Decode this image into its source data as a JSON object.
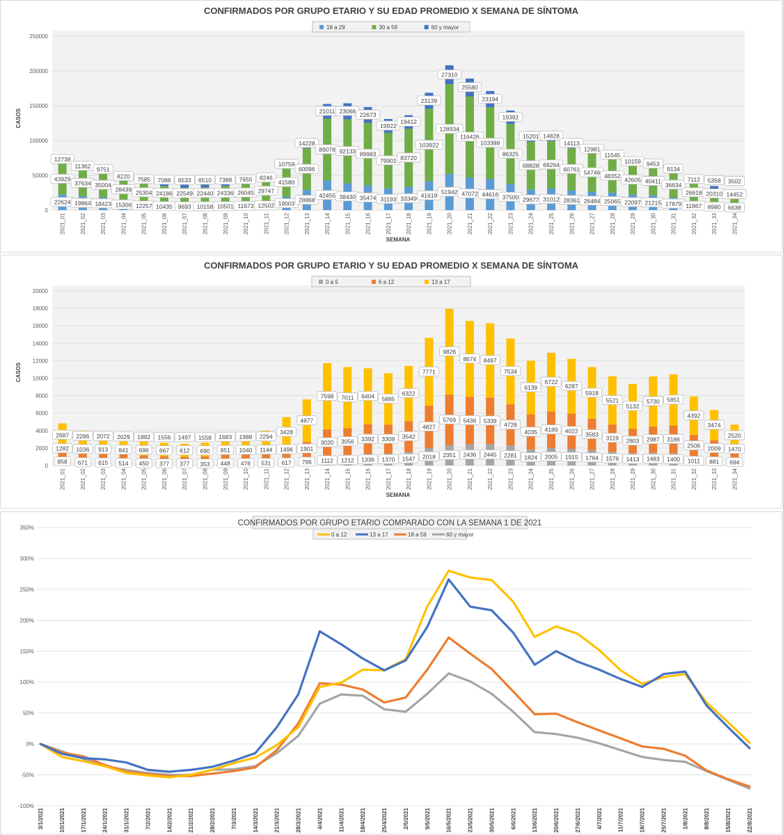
{
  "chart_data": [
    {
      "type": "bar",
      "stacked": true,
      "title": "CONFIRMADOS POR GRUPO ETARIO Y SU EDAD PROMEDIO X SEMANA DE SÍNTOMA",
      "xlabel": "SEMANA",
      "ylabel": "CASOS",
      "ylim": [
        0,
        250000
      ],
      "yticks": [
        0,
        50000,
        100000,
        150000,
        200000,
        250000
      ],
      "grid": true,
      "legend": "top-center",
      "categories": [
        "2021_01",
        "2021_02",
        "2021_03",
        "2021_04",
        "2021_05",
        "2021_06",
        "2021_07",
        "2021_08",
        "2021_09",
        "2021_10",
        "2021_11",
        "2021_12",
        "2021_13",
        "2021_14",
        "2021_15",
        "2021_16",
        "2021_17",
        "2021_18",
        "2021_19",
        "2021_20",
        "2021_21",
        "2021_22",
        "2021_23",
        "2021_24",
        "2021_25",
        "2021_26",
        "2021_27",
        "2021_28",
        "2021_29",
        "2021_30",
        "2021_31",
        "2021_32",
        "2021_33",
        "2021_34"
      ],
      "series": [
        {
          "name": "18 a 29",
          "color": "#5b9bd5",
          "values": [
            22624,
            19864,
            18423,
            15306,
            12257,
            10435,
            9693,
            10158,
            10501,
            11673,
            12502,
            19003,
            28868,
            42455,
            38430,
            35474,
            31193,
            33349,
            41619,
            51942,
            47072,
            44616,
            37500,
            29677,
            31012,
            28361,
            26484,
            25065,
            22097,
            21215,
            17879,
            11867,
            8980,
            6638
          ]
        },
        {
          "name": "30 a 59",
          "color": "#70ad47",
          "values": [
            43929,
            37634,
            35004,
            28439,
            25304,
            24186,
            22549,
            22440,
            24336,
            26045,
            29747,
            41580,
            60096,
            89078,
            92133,
            89983,
            79901,
            83720,
            103922,
            128934,
            116426,
            103388,
            86325,
            68828,
            68264,
            60761,
            54746,
            48352,
            42605,
            40411,
            36634,
            26618,
            20310,
            14452
          ]
        },
        {
          "name": "60 y mayor",
          "color": "#4472c4",
          "values": [
            12738,
            11362,
            9751,
            8220,
            7585,
            7088,
            6533,
            6510,
            7388,
            7655,
            8246,
            10759,
            14228,
            21011,
            23066,
            22673,
            19922,
            19412,
            23139,
            27310,
            25580,
            23194,
            19392,
            15201,
            14828,
            14113,
            12981,
            11545,
            10159,
            9453,
            9134,
            7112,
            5358,
            3502
          ]
        }
      ]
    },
    {
      "type": "bar",
      "stacked": true,
      "title": "CONFIRMADOS POR GRUPO ETARIO Y SU EDAD PROMEDIO X SEMANA DE SÍNTOMA",
      "xlabel": "SEMANA",
      "ylabel": "CASOS",
      "ylim": [
        0,
        20000
      ],
      "yticks": [
        0,
        2000,
        4000,
        6000,
        8000,
        10000,
        12000,
        14000,
        16000,
        18000,
        20000
      ],
      "grid": true,
      "legend": "top-center",
      "categories": [
        "2021_01",
        "2021_02",
        "2021_03",
        "2021_04",
        "2021_05",
        "2021_06",
        "2021_07",
        "2021_08",
        "2021_09",
        "2021_10",
        "2021_11",
        "2021_12",
        "2021_13",
        "2021_14",
        "2021_15",
        "2021_16",
        "2021_17",
        "2021_18",
        "2021_19",
        "2021_20",
        "2021_21",
        "2021_22",
        "2021_23",
        "2021_24",
        "2021_25",
        "2021_26",
        "2021_27",
        "2021_28",
        "2021_29",
        "2021_30",
        "2021_31",
        "2021_32",
        "2021_33",
        "2021_34"
      ],
      "series": [
        {
          "name": "0 a 5",
          "color": "#a5a5a5",
          "values": [
            858,
            671,
            615,
            514,
            450,
            377,
            377,
            353,
            448,
            476,
            531,
            617,
            796,
            1112,
            1212,
            1336,
            1370,
            1547,
            2018,
            2351,
            2436,
            2445,
            2281,
            1824,
            2005,
            1915,
            1764,
            1576,
            1413,
            1483,
            1400,
            1011,
            881,
            694
          ]
        },
        {
          "name": "6 a 12",
          "color": "#ed7d31",
          "values": [
            1282,
            1036,
            913,
            841,
            696,
            667,
            612,
            690,
            851,
            1040,
            1144,
            1496,
            1901,
            3020,
            3056,
            3392,
            3309,
            3542,
            4827,
            5769,
            5436,
            5339,
            4728,
            4035,
            4189,
            4022,
            3583,
            3119,
            2803,
            2987,
            3186,
            2506,
            2009,
            1470
          ]
        },
        {
          "name": "13 a 17",
          "color": "#ffc000",
          "values": [
            2687,
            2286,
            2072,
            2029,
            1892,
            1556,
            1497,
            1558,
            1683,
            1988,
            2294,
            3428,
            4877,
            7598,
            7011,
            6404,
            5885,
            6322,
            7771,
            9826,
            8674,
            8497,
            7534,
            6139,
            6722,
            6287,
            5918,
            5521,
            5132,
            5730,
            5851,
            4392,
            3474,
            2520
          ]
        }
      ]
    },
    {
      "type": "line",
      "title": "CONFIRMADOS POR GRUPO ETARIO COMPARADO CON LA SEMANA 1 DE 2021",
      "xlabel": "",
      "ylabel": "",
      "ylim": [
        -100,
        350
      ],
      "yticks": [
        -100,
        -50,
        0,
        50,
        100,
        150,
        200,
        250,
        300,
        350
      ],
      "ytick_suffix": "%",
      "grid": true,
      "legend": "top-center",
      "x": [
        "3/1/2021",
        "10/1/2021",
        "17/1/2021",
        "24/1/2021",
        "31/1/2021",
        "7/2/2021",
        "14/2/2021",
        "21/2/2021",
        "28/2/2021",
        "7/3/2021",
        "14/3/2021",
        "21/3/2021",
        "28/3/2021",
        "4/4/2021",
        "11/4/2021",
        "18/4/2021",
        "25/4/2021",
        "2/5/2021",
        "9/5/2021",
        "16/5/2021",
        "23/5/2021",
        "30/5/2021",
        "6/6/2021",
        "13/6/2021",
        "20/6/2021",
        "27/6/2021",
        "4/7/2021",
        "11/7/2021",
        "18/7/2021",
        "25/7/2021",
        "1/8/2021",
        "8/8/2021",
        "15/8/2021",
        "22/8/2021"
      ],
      "series": [
        {
          "name": "0 a 12",
          "color": "#ffc000",
          "values": [
            0,
            -21,
            -28,
            -36,
            -47,
            -51,
            -54,
            -50,
            -42,
            -31,
            -22,
            -2,
            27,
            92,
            99,
            120,
            119,
            137,
            222,
            280,
            269,
            265,
            230,
            173,
            190,
            178,
            152,
            119,
            97,
            108,
            113,
            67,
            35,
            2
          ]
        },
        {
          "name": "13 a 17",
          "color": "#4472c4",
          "values": [
            0,
            -16,
            -23,
            -25,
            -30,
            -42,
            -45,
            -42,
            -37,
            -27,
            -15,
            27,
            80,
            182,
            161,
            138,
            119,
            135,
            189,
            266,
            222,
            216,
            180,
            128,
            150,
            133,
            120,
            105,
            92,
            113,
            117,
            62,
            27,
            -7
          ]
        },
        {
          "name": "18 a 59",
          "color": "#ed7d31",
          "values": [
            0,
            -14,
            -20,
            -34,
            -45,
            -49,
            -52,
            -52,
            -48,
            -44,
            -38,
            -10,
            33,
            98,
            96,
            88,
            67,
            75,
            120,
            172,
            146,
            121,
            85,
            48,
            49,
            35,
            22,
            9,
            -4,
            -8,
            -19,
            -43,
            -57,
            -69
          ]
        },
        {
          "name": "60 y mayor",
          "color": "#a5a5a5",
          "values": [
            0,
            -12,
            -24,
            -36,
            -42,
            -47,
            -50,
            -50,
            -42,
            -41,
            -36,
            -15,
            13,
            65,
            80,
            78,
            56,
            52,
            81,
            114,
            101,
            81,
            52,
            19,
            16,
            10,
            1,
            -10,
            -21,
            -26,
            -29,
            -44,
            -58,
            -72
          ]
        }
      ]
    }
  ]
}
